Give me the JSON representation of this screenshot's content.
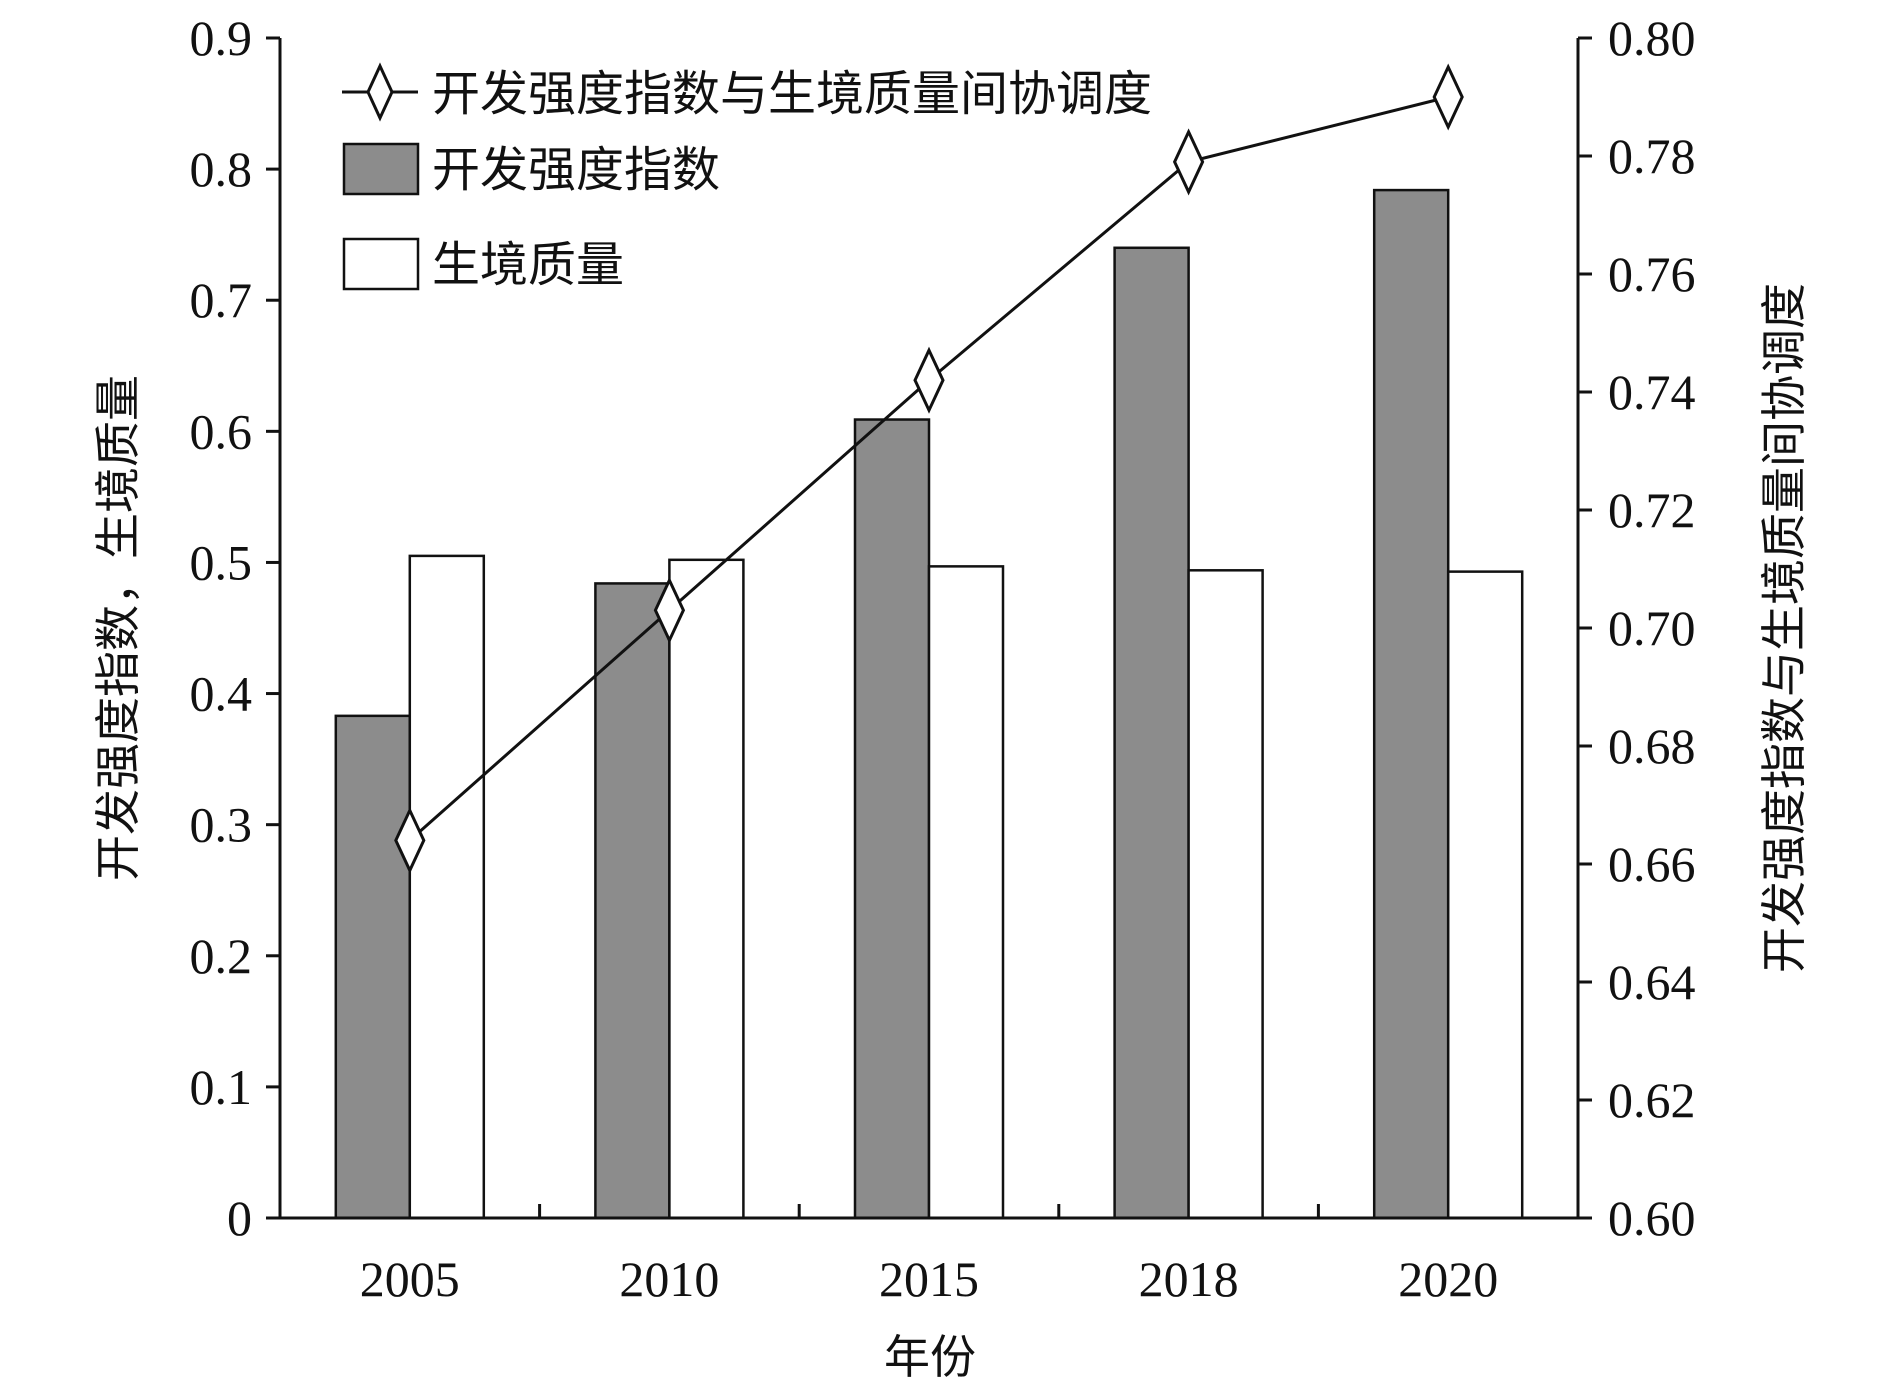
{
  "chart_data": {
    "type": "bar",
    "categories": [
      "2005",
      "2010",
      "2015",
      "2018",
      "2020"
    ],
    "series": [
      {
        "name": "开发强度指数",
        "type": "bar",
        "axis": "left",
        "color": "#8c8c8c",
        "values": [
          0.383,
          0.484,
          0.609,
          0.74,
          0.784
        ]
      },
      {
        "name": "生境质量",
        "type": "bar",
        "axis": "left",
        "color": "#ffffff",
        "values": [
          0.505,
          0.502,
          0.497,
          0.494,
          0.493
        ]
      },
      {
        "name": "开发强度指数与生境质量间协调度",
        "type": "line",
        "axis": "right",
        "marker": "diamond",
        "color": "#111111",
        "values": [
          0.664,
          0.703,
          0.742,
          0.779,
          0.79
        ]
      }
    ],
    "xlabel": "年份",
    "ylabel": "开发强度指数，生境质量",
    "y2label": "开发强度指数与生境质量间协调度",
    "ylim": [
      0,
      0.9
    ],
    "y2lim": [
      0.6,
      0.8
    ],
    "yticks": [
      "0",
      "0.1",
      "0.2",
      "0.3",
      "0.4",
      "0.5",
      "0.6",
      "0.7",
      "0.8",
      "0.9"
    ],
    "y2ticks": [
      "0.60",
      "0.62",
      "0.64",
      "0.66",
      "0.68",
      "0.70",
      "0.72",
      "0.74",
      "0.76",
      "0.78",
      "0.80"
    ],
    "legend": {
      "position": "top-left",
      "items": [
        "开发强度指数与生境质量间协调度",
        "开发强度指数",
        "生境质量"
      ]
    },
    "grid": false
  }
}
